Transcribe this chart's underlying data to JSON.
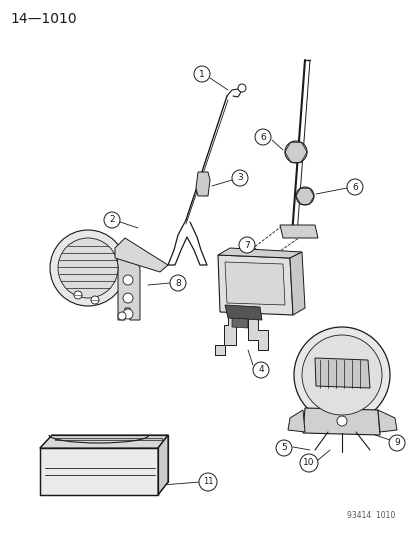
{
  "title": "14—1010",
  "footer": "93414  1010",
  "bg_color": "#ffffff",
  "line_color": "#1a1a1a",
  "fig_width": 4.14,
  "fig_height": 5.33,
  "dpi": 100
}
